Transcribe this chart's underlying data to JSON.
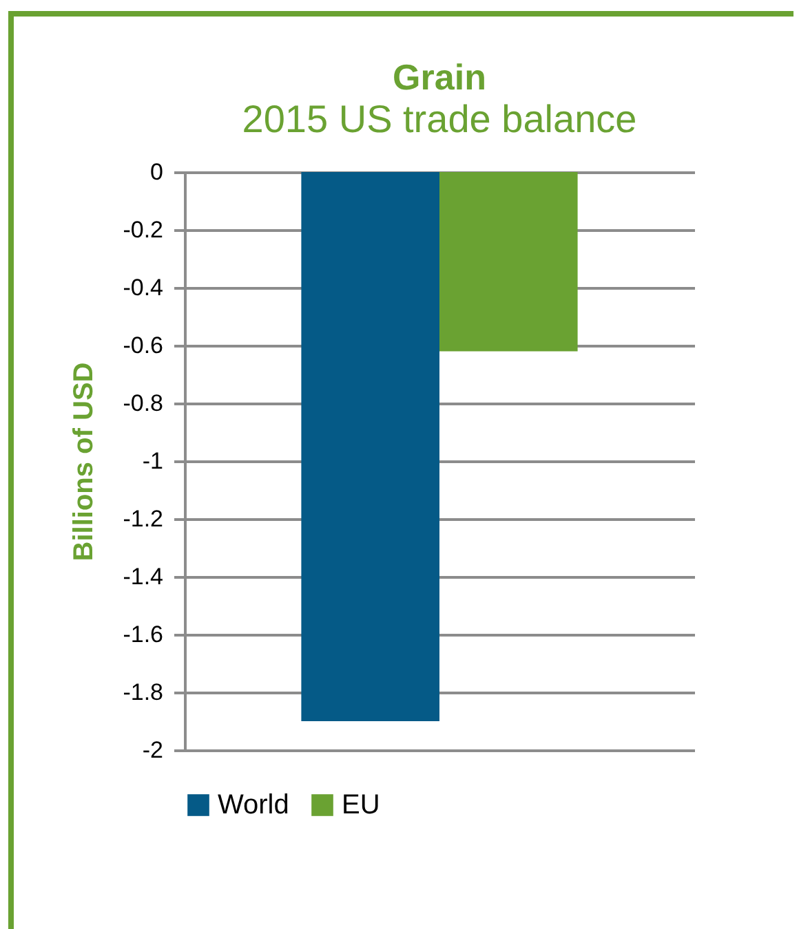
{
  "chart_data": {
    "type": "bar",
    "title": "Grain",
    "subtitle": "2015  US trade balance",
    "ylabel": "Billions of USD",
    "categories": [
      null
    ],
    "series": [
      {
        "name": "World",
        "color": "#055a87",
        "values": [
          -1.9
        ]
      },
      {
        "name": "EU",
        "color": "#6aa232",
        "values": [
          -0.62
        ]
      }
    ],
    "ylim": [
      -2,
      0
    ],
    "yticks": [
      0,
      -0.2,
      -0.4,
      -0.6,
      -0.8,
      -1,
      -1.2,
      -1.4,
      -1.6,
      -1.8,
      -2
    ],
    "grid": "y",
    "legend": "bottom",
    "tick_labels": "y"
  }
}
